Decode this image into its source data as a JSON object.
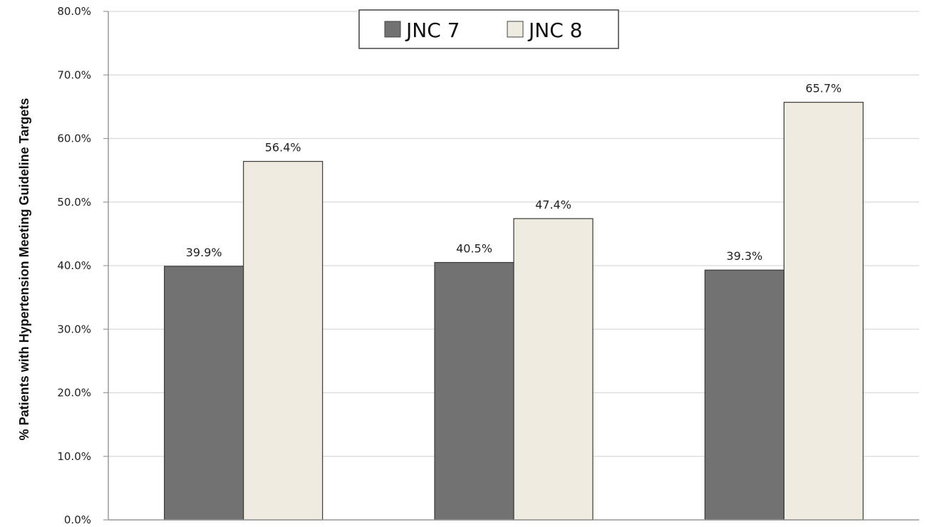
{
  "chart_data": {
    "type": "bar",
    "title": "",
    "xlabel": "",
    "ylabel": "% Patients with Hypertension Meeting Guideline Targets",
    "ylim": [
      0,
      80
    ],
    "yticks": [
      "0.0%",
      "10.0%",
      "20.0%",
      "30.0%",
      "40.0%",
      "50.0%",
      "60.0%",
      "70.0%",
      "80.0%"
    ],
    "grid": true,
    "legend_position": "top-center",
    "categories": [
      "",
      "",
      ""
    ],
    "series": [
      {
        "name": "JNC 7",
        "values": [
          39.9,
          40.5,
          39.3
        ],
        "labels": [
          "39.9%",
          "40.5%",
          "39.3%"
        ],
        "color": "#727272"
      },
      {
        "name": "JNC 8",
        "values": [
          56.4,
          47.4,
          65.7
        ],
        "labels": [
          "56.4%",
          "47.4%",
          "65.7%"
        ],
        "color": "#efebe0"
      }
    ]
  }
}
